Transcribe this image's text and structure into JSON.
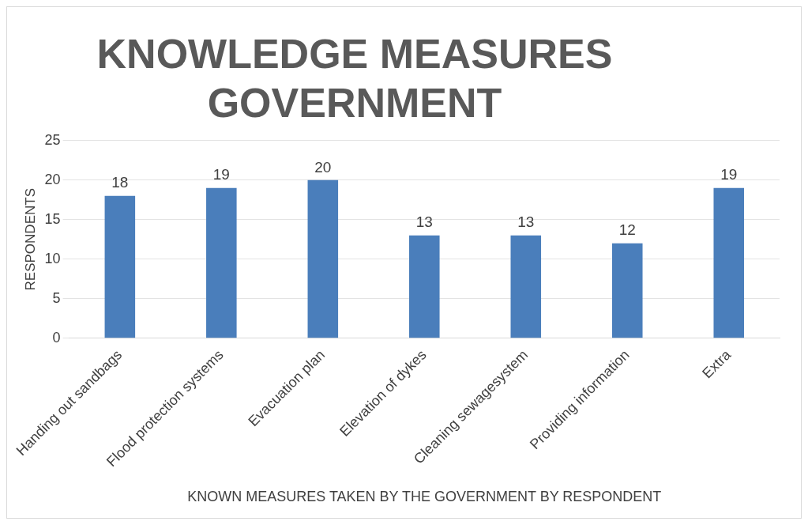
{
  "chart_data": {
    "type": "bar",
    "title": "KNOWLEDGE MEASURES GOVERNMENT",
    "xlabel": "KNOWN MEASURES TAKEN BY THE GOVERNMENT BY RESPONDENT",
    "ylabel": "RESPONDENTS",
    "categories": [
      "Handing out sandbags",
      "Flood protection systems",
      "Evacuation plan",
      "Elevation of dykes",
      "Cleaning sewagesystem",
      "Providing information",
      "Extra"
    ],
    "values": [
      18,
      19,
      20,
      13,
      13,
      12,
      19
    ],
    "color": "#4a7ebb",
    "ylim": [
      0,
      25
    ],
    "yticks": [
      0,
      5,
      10,
      15,
      20,
      25
    ],
    "grid": "y",
    "data_labels": true,
    "legend": false
  }
}
